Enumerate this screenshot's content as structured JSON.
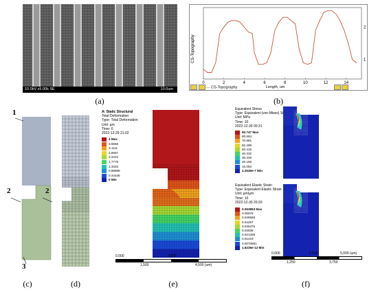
{
  "captions": {
    "a": "(a)",
    "b": "(b)",
    "c": "(c)",
    "d": "(d)",
    "e": "(e)",
    "f": "(f)"
  },
  "sem": {
    "info_left": "10.0kV x5.00k SE",
    "info_right": "10.0um"
  },
  "profile": {
    "ylabel": "CS-Topography",
    "xlabel": "Length, um",
    "legend": "CS-Topography",
    "xticks": [
      "0",
      "2",
      "4",
      "6",
      "8",
      "10",
      "12",
      "14"
    ],
    "yticks": [
      "2",
      "1"
    ]
  },
  "chart_data": {
    "type": "line",
    "title": "",
    "xlabel": "Length, um",
    "ylabel": "CS-Topography",
    "xlim": [
      0,
      15.5
    ],
    "ylim": [
      0.4,
      2.6
    ],
    "series": [
      {
        "name": "CS-Topography",
        "x": [
          0,
          0.4,
          0.8,
          1.2,
          1.6,
          2.0,
          2.4,
          2.8,
          3.2,
          3.6,
          4.0,
          4.4,
          4.8,
          5.0,
          5.4,
          5.8,
          6.2,
          6.6,
          7.0,
          7.4,
          7.8,
          8.2,
          8.6,
          9.0,
          9.4,
          9.8,
          10.2,
          10.6,
          11.0,
          11.4,
          11.8,
          12.2,
          12.6,
          13.0,
          13.4,
          13.8,
          14.2,
          14.6,
          15.0
        ],
        "y": [
          0.7,
          0.6,
          0.6,
          0.9,
          1.8,
          2.0,
          2.15,
          2.2,
          2.2,
          2.15,
          2.0,
          1.85,
          1.8,
          1.2,
          0.85,
          0.85,
          0.9,
          1.2,
          1.9,
          2.15,
          2.3,
          2.3,
          2.2,
          2.1,
          1.3,
          0.9,
          0.85,
          0.9,
          1.9,
          2.2,
          2.45,
          2.5,
          2.5,
          2.4,
          2.2,
          1.9,
          1.5,
          1.0,
          0.9
        ]
      }
    ]
  },
  "panel_c": {
    "label1": "1",
    "label2a": "2",
    "label2b": "2",
    "label3": "3"
  },
  "panel_e": {
    "title": "A: Static Structural",
    "lines": [
      "Total Deformation",
      "Type: Total Deformation",
      "Unit: µm",
      "Time: 0",
      "2022-12-29 21:02"
    ],
    "legend": [
      "4 Max",
      "3.5556",
      "3.1111",
      "2.6667",
      "2.2222",
      "1.7778",
      "1.3333",
      "0.88889",
      "0.44445",
      "0 Min"
    ],
    "colors": [
      "#b0161a",
      "#e0541a",
      "#f1a21d",
      "#e6d523",
      "#a6d933",
      "#43d565",
      "#23c2b5",
      "#1e8fd6",
      "#1a4bd9",
      "#1422b0"
    ],
    "scale": [
      "0.000",
      "1,500",
      "3,000",
      "4,500 (um)"
    ]
  },
  "panel_f": {
    "top": {
      "lines": [
        "Equivalent Stress",
        "Type: Equivalent (von-Mises) Stress",
        "Unit: MPa",
        "Time: 10",
        "2022-12-30 00:31"
      ],
      "legend": [
        "90.747 Max",
        "80.664",
        "70.581",
        "60.498",
        "50.415",
        "40.332",
        "30.249",
        "20.166",
        "10.083",
        "2.2536e-7 Min"
      ]
    },
    "bottom": {
      "lines": [
        "Equivalent Elastic Strain",
        "Type: Equivalent Elastic Strain",
        "Unit: µm/µm",
        "Time: 10",
        "2022-12-30 20:20"
      ],
      "legend": [
        "0.063853 Max",
        "0.05676",
        "0.049665",
        "0.04257",
        "0.035475",
        "0.02838",
        "0.021285",
        "0.01419",
        "0.0070951",
        "1.6236e-12 Min"
      ]
    },
    "scale": [
      "0.000",
      "1,250",
      "2,500",
      "3,750",
      "5,000 (um)"
    ]
  }
}
